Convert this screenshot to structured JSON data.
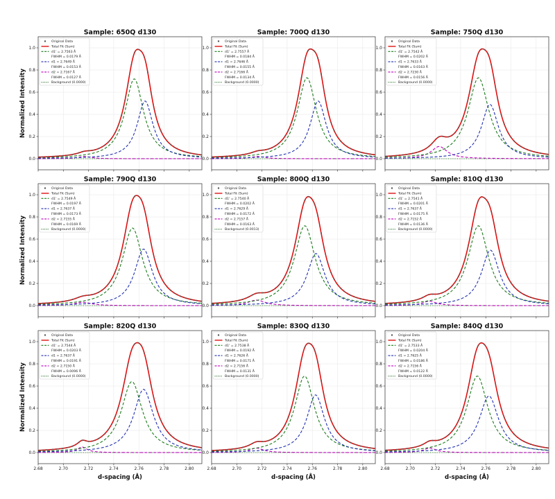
{
  "figure": {
    "xlabel": "d-spacing (Å)",
    "ylabel": "Normalized Intensity"
  },
  "colors": {
    "data": "#555555",
    "total": "#dd1111",
    "d1prime": "#1a7a1a",
    "d1": "#1f2fb0",
    "d2": "#c000c0",
    "background": "#1a6a1a"
  },
  "legend_labels": {
    "data": "Original Data",
    "total": "Total Fit (Sum)",
    "background_prefix": "Background"
  },
  "chart_data": [
    {
      "type": "line",
      "title": "Sample: 650Q d130",
      "xlim": [
        2.68,
        2.81
      ],
      "ylim": [
        -0.1,
        1.1
      ],
      "xticks": [
        2.68,
        2.7,
        2.72,
        2.74,
        2.76,
        2.78,
        2.8
      ],
      "yticks": [
        0.0,
        0.2,
        0.4,
        0.6,
        0.8,
        1.0
      ],
      "legend": {
        "d1p": "d1' = 2.7563 Å",
        "d1p_fwhm": "FWHM = 0.0179 Å",
        "d1": "d1 = 2.7649 Å",
        "d1_fwhm": "FWHM = 0.0153 Å",
        "d2": "d2 = 2.7167 Å",
        "d2_fwhm": "FWHM = 0.0127 Å",
        "bg": "Background (0.0000)"
      },
      "peaks": {
        "d1p": {
          "center": 2.7563,
          "fwhm": 0.0179,
          "amp": 0.72
        },
        "d1": {
          "center": 2.7649,
          "fwhm": 0.0153,
          "amp": 0.52
        },
        "d2": {
          "center": 2.7167,
          "fwhm": 0.0127,
          "amp": 0.02
        }
      }
    },
    {
      "type": "line",
      "title": "Sample: 700Q d130",
      "xlim": [
        2.68,
        2.81
      ],
      "ylim": [
        -0.1,
        1.1
      ],
      "xticks": [
        2.68,
        2.7,
        2.72,
        2.74,
        2.76,
        2.78,
        2.8
      ],
      "yticks": [
        0.0,
        0.2,
        0.4,
        0.6,
        0.8,
        1.0
      ],
      "legend": {
        "d1p": "d1' = 2.7557 Å",
        "d1p_fwhm": "FWHM = 0.0184 Å",
        "d1": "d1 = 2.7646 Å",
        "d1_fwhm": "FWHM = 0.0155 Å",
        "d2": "d2 = 2.7166 Å",
        "d2_fwhm": "FWHM = 0.0134 Å",
        "bg": "Background (0.0000)"
      },
      "peaks": {
        "d1p": {
          "center": 2.7557,
          "fwhm": 0.0184,
          "amp": 0.73
        },
        "d1": {
          "center": 2.7646,
          "fwhm": 0.0155,
          "amp": 0.52
        },
        "d2": {
          "center": 2.7166,
          "fwhm": 0.0134,
          "amp": 0.02
        }
      }
    },
    {
      "type": "line",
      "title": "Sample: 750Q d130",
      "xlim": [
        2.68,
        2.81
      ],
      "ylim": [
        -0.1,
        1.1
      ],
      "xticks": [
        2.68,
        2.7,
        2.72,
        2.74,
        2.76,
        2.78,
        2.8
      ],
      "yticks": [
        0.0,
        0.2,
        0.4,
        0.6,
        0.8,
        1.0
      ],
      "legend": {
        "d1p": "d1' = 2.7542 Å",
        "d1p_fwhm": "FWHM = 0.0202 Å",
        "d1": "d1 = 2.7633 Å",
        "d1_fwhm": "FWHM = 0.0163 Å",
        "d2": "d2 = 2.7230 Å",
        "d2_fwhm": "FWHM = 0.0156 Å",
        "bg": "Background (0.0000)"
      },
      "peaks": {
        "d1p": {
          "center": 2.7542,
          "fwhm": 0.0202,
          "amp": 0.73
        },
        "d1": {
          "center": 2.7633,
          "fwhm": 0.0163,
          "amp": 0.49
        },
        "d2": {
          "center": 2.723,
          "fwhm": 0.0156,
          "amp": 0.11
        }
      }
    },
    {
      "type": "line",
      "title": "Sample: 790Q d130",
      "xlim": [
        2.68,
        2.81
      ],
      "ylim": [
        -0.1,
        1.1
      ],
      "xticks": [
        2.68,
        2.7,
        2.72,
        2.74,
        2.76,
        2.78,
        2.8
      ],
      "yticks": [
        0.0,
        0.2,
        0.4,
        0.6,
        0.8,
        1.0
      ],
      "legend": {
        "d1p": "d1' = 2.7549 Å",
        "d1p_fwhm": "FWHM = 0.0197 Å",
        "d1": "d1 = 2.7637 Å",
        "d1_fwhm": "FWHM = 0.0173 Å",
        "d2": "d2 = 2.7155 Å",
        "d2_fwhm": "FWHM = 0.0169 Å",
        "bg": "Background (0.0000)"
      },
      "peaks": {
        "d1p": {
          "center": 2.7549,
          "fwhm": 0.0197,
          "amp": 0.7
        },
        "d1": {
          "center": 2.7637,
          "fwhm": 0.0173,
          "amp": 0.51
        },
        "d2": {
          "center": 2.7155,
          "fwhm": 0.0169,
          "amp": 0.03
        }
      }
    },
    {
      "type": "line",
      "title": "Sample: 800Q d130",
      "xlim": [
        2.68,
        2.81
      ],
      "ylim": [
        -0.1,
        1.1
      ],
      "xticks": [
        2.68,
        2.7,
        2.72,
        2.74,
        2.76,
        2.78,
        2.8
      ],
      "yticks": [
        0.0,
        0.2,
        0.4,
        0.6,
        0.8,
        1.0
      ],
      "legend": {
        "d1p": "d1' = 2.7540 Å",
        "d1p_fwhm": "FWHM = 0.0202 Å",
        "d1": "d1 = 2.7629 Å",
        "d1_fwhm": "FWHM = 0.0172 Å",
        "d2": "d2 = 2.7157 Å",
        "d2_fwhm": "FWHM = 0.0163 Å",
        "bg": "Background (0.0013)"
      },
      "peaks": {
        "d1p": {
          "center": 2.754,
          "fwhm": 0.0202,
          "amp": 0.72
        },
        "d1": {
          "center": 2.7629,
          "fwhm": 0.0172,
          "amp": 0.47
        },
        "d2": {
          "center": 2.7157,
          "fwhm": 0.0163,
          "amp": 0.05
        }
      }
    },
    {
      "type": "line",
      "title": "Sample: 810Q d130",
      "xlim": [
        2.68,
        2.81
      ],
      "ylim": [
        -0.1,
        1.1
      ],
      "xticks": [
        2.68,
        2.7,
        2.72,
        2.74,
        2.76,
        2.78,
        2.8
      ],
      "yticks": [
        0.0,
        0.2,
        0.4,
        0.6,
        0.8,
        1.0
      ],
      "legend": {
        "d1p": "d1' = 2.7541 Å",
        "d1p_fwhm": "FWHM = 0.0201 Å",
        "d1": "d1 = 2.7637 Å",
        "d1_fwhm": "FWHM = 0.0175 Å",
        "d2": "d2 = 2.7152 Å",
        "d2_fwhm": "FWHM = 0.0136 Å",
        "bg": "Background (0.0000)"
      },
      "peaks": {
        "d1p": {
          "center": 2.7541,
          "fwhm": 0.0201,
          "amp": 0.72
        },
        "d1": {
          "center": 2.7637,
          "fwhm": 0.0175,
          "amp": 0.5
        },
        "d2": {
          "center": 2.7152,
          "fwhm": 0.0136,
          "amp": 0.04
        }
      }
    },
    {
      "type": "line",
      "title": "Sample: 820Q d130",
      "xlim": [
        2.68,
        2.81
      ],
      "ylim": [
        -0.1,
        1.1
      ],
      "xticks": [
        2.68,
        2.7,
        2.72,
        2.74,
        2.76,
        2.78,
        2.8
      ],
      "yticks": [
        0.0,
        0.2,
        0.4,
        0.6,
        0.8,
        1.0
      ],
      "legend": {
        "d1p": "d1' = 2.7544 Å",
        "d1p_fwhm": "FWHM = 0.0203 Å",
        "d1": "d1 = 2.7637 Å",
        "d1_fwhm": "FWHM = 0.0191 Å",
        "d2": "d2 = 2.7150 Å",
        "d2_fwhm": "FWHM = 0.0096 Å",
        "bg": "Background (0.0000)"
      },
      "peaks": {
        "d1p": {
          "center": 2.7544,
          "fwhm": 0.0203,
          "amp": 0.64
        },
        "d1": {
          "center": 2.7637,
          "fwhm": 0.0191,
          "amp": 0.57
        },
        "d2": {
          "center": 2.715,
          "fwhm": 0.0096,
          "amp": 0.05
        }
      }
    },
    {
      "type": "line",
      "title": "Sample: 830Q d130",
      "xlim": [
        2.68,
        2.81
      ],
      "ylim": [
        -0.1,
        1.1
      ],
      "xticks": [
        2.68,
        2.7,
        2.72,
        2.74,
        2.76,
        2.78,
        2.8
      ],
      "yticks": [
        0.0,
        0.2,
        0.4,
        0.6,
        0.8,
        1.0
      ],
      "legend": {
        "d1p": "d1' = 2.7538 Å",
        "d1p_fwhm": "FWHM = 0.0192 Å",
        "d1": "d1 = 2.7626 Å",
        "d1_fwhm": "FWHM = 0.0171 Å",
        "d2": "d2 = 2.7156 Å",
        "d2_fwhm": "FWHM = 0.0131 Å",
        "bg": "Background (0.0000)"
      },
      "peaks": {
        "d1p": {
          "center": 2.7538,
          "fwhm": 0.0192,
          "amp": 0.69
        },
        "d1": {
          "center": 2.7626,
          "fwhm": 0.0171,
          "amp": 0.52
        },
        "d2": {
          "center": 2.7156,
          "fwhm": 0.0131,
          "amp": 0.04
        }
      }
    },
    {
      "type": "line",
      "title": "Sample: 840Q d130",
      "xlim": [
        2.68,
        2.81
      ],
      "ylim": [
        -0.1,
        1.1
      ],
      "xticks": [
        2.68,
        2.7,
        2.72,
        2.74,
        2.76,
        2.78,
        2.8
      ],
      "yticks": [
        0.0,
        0.2,
        0.4,
        0.6,
        0.8,
        1.0
      ],
      "legend": {
        "d1p": "d1' = 2.7533 Å",
        "d1p_fwhm": "FWHM = 0.0204 Å",
        "d1": "d1 = 2.7625 Å",
        "d1_fwhm": "FWHM = 0.0186 Å",
        "d2": "d2 = 2.7156 Å",
        "d2_fwhm": "FWHM = 0.0122 Å",
        "bg": "Background (0.0000)"
      },
      "peaks": {
        "d1p": {
          "center": 2.7533,
          "fwhm": 0.0204,
          "amp": 0.69
        },
        "d1": {
          "center": 2.7625,
          "fwhm": 0.0186,
          "amp": 0.51
        },
        "d2": {
          "center": 2.7156,
          "fwhm": 0.0122,
          "amp": 0.04
        }
      }
    }
  ]
}
